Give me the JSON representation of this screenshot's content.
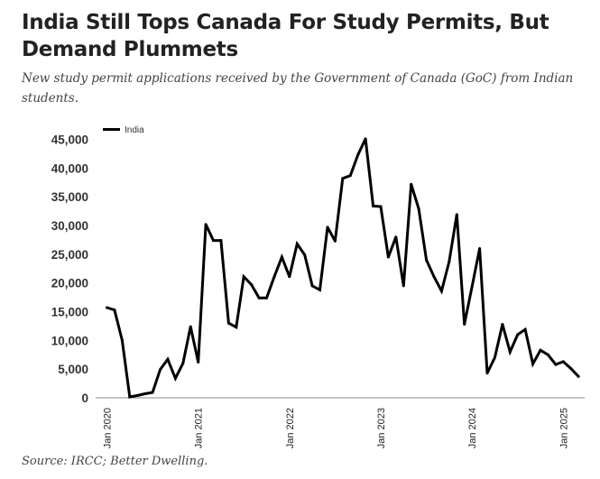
{
  "header": {
    "title": "India Still Tops Canada For Study Permits, But Demand Plummets",
    "subtitle": "New study permit applications received by the Government of Canada (GoC) from Indian students."
  },
  "footer": {
    "source": "Source: IRCC; Better Dwelling."
  },
  "colors": {
    "line": "#000000",
    "axis": "#888888",
    "text": "#333333"
  },
  "chart_data": {
    "type": "line",
    "title": "India Still Tops Canada For Study Permits, But Demand Plummets",
    "xlabel": "",
    "ylabel": "",
    "ylim": [
      0,
      45000
    ],
    "yticks": [
      0,
      5000,
      10000,
      15000,
      20000,
      25000,
      30000,
      35000,
      40000,
      45000
    ],
    "ytick_labels": [
      "0",
      "5,000",
      "10,000",
      "15,000",
      "20,000",
      "25,000",
      "30,000",
      "35,000",
      "40,000",
      "45,000"
    ],
    "xtick_labels": [
      "Jan 2020",
      "Jan 2021",
      "Jan 2022",
      "Jan 2023",
      "Jan 2024",
      "Jan 2025"
    ],
    "xtick_month_index": [
      0,
      12,
      24,
      36,
      48,
      60
    ],
    "x_start": "Jan 2020",
    "x_end": "Mar 2025",
    "grid": false,
    "legend": {
      "position": "top-left",
      "entries": [
        "India"
      ]
    },
    "series": [
      {
        "name": "India",
        "values": [
          15700,
          15300,
          10000,
          150,
          400,
          700,
          950,
          4900,
          6700,
          3400,
          6000,
          12400,
          6200,
          30200,
          27400,
          27400,
          13000,
          12300,
          21100,
          19700,
          17400,
          17400,
          21100,
          24500,
          21100,
          26800,
          24900,
          19500,
          18800,
          29700,
          27300,
          38200,
          38700,
          42300,
          45100,
          33400,
          33300,
          24500,
          28000,
          19500,
          37200,
          32900,
          24000,
          21100,
          18600,
          23700,
          31900,
          12800,
          19300,
          26000,
          4300,
          7000,
          12800,
          8000,
          11000,
          11900,
          5900,
          8300,
          7500,
          5800,
          6300,
          5100,
          3700
        ]
      }
    ]
  }
}
